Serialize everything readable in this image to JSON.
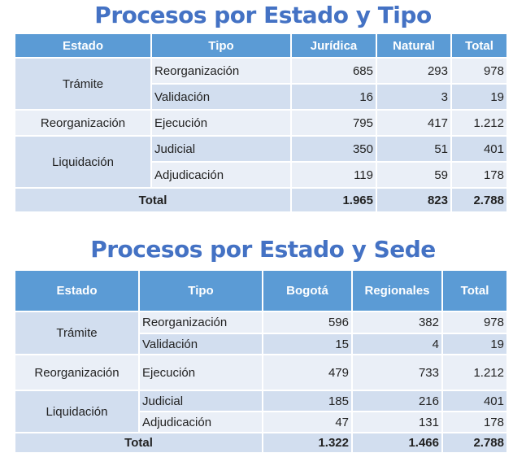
{
  "table1": {
    "title": "Procesos por Estado y Tipo",
    "headers": [
      "Estado",
      "Tipo",
      "Jurídica",
      "Natural",
      "Total"
    ],
    "groups": [
      "Trámite",
      "Reorganización",
      "Liquidación"
    ],
    "rows": [
      [
        "Reorganización",
        "685",
        "293",
        "978"
      ],
      [
        "Validación",
        "16",
        "3",
        "19"
      ],
      [
        "Ejecución",
        "795",
        "417",
        "1.212"
      ],
      [
        "Judicial",
        "350",
        "51",
        "401"
      ],
      [
        "Adjudicación",
        "119",
        "59",
        "178"
      ]
    ],
    "total": [
      "Total",
      "1.965",
      "823",
      "2.788"
    ]
  },
  "table2": {
    "title": "Procesos por Estado y Sede",
    "headers": [
      "Estado",
      "Tipo",
      "Bogotá",
      "Regionales",
      "Total"
    ],
    "groups": [
      "Trámite",
      "Reorganización",
      "Liquidación"
    ],
    "rows": [
      [
        "Reorganización",
        "596",
        "382",
        "978"
      ],
      [
        "Validación",
        "15",
        "4",
        "19"
      ],
      [
        "Ejecución",
        "479",
        "733",
        "1.212"
      ],
      [
        "Judicial",
        "185",
        "216",
        "401"
      ],
      [
        "Adjudicación",
        "47",
        "131",
        "178"
      ]
    ],
    "total": [
      "Total",
      "1.322",
      "1.466",
      "2.788"
    ]
  }
}
